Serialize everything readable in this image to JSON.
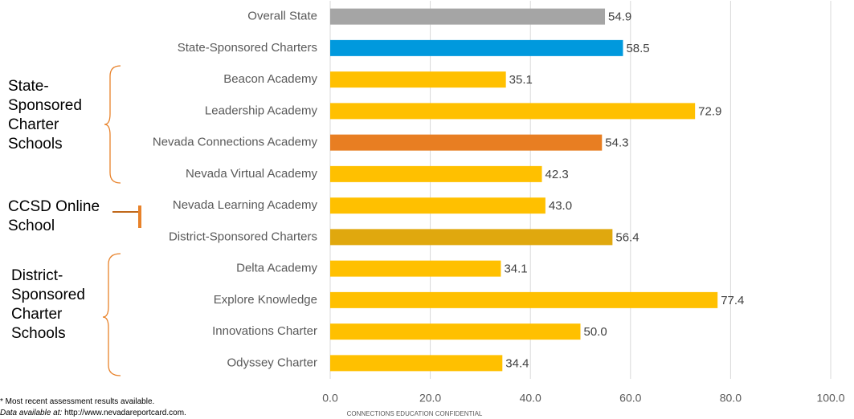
{
  "chart_data": {
    "type": "bar",
    "orientation": "horizontal",
    "categories": [
      "Overall State",
      "State-Sponsored Charters",
      "Beacon Academy",
      "Leadership Academy",
      "Nevada Connections Academy",
      "Nevada Virtual Academy",
      "Nevada Learning Academy",
      "District-Sponsored Charters",
      "Delta Academy",
      "Explore Knowledge",
      "Innovations Charter",
      "Odyssey Charter"
    ],
    "values": [
      54.9,
      58.5,
      35.1,
      72.9,
      54.3,
      42.3,
      43.0,
      56.4,
      34.1,
      77.4,
      50.0,
      34.4
    ],
    "value_labels": [
      "54.9",
      "58.5",
      "35.1",
      "72.9",
      "54.3",
      "42.3",
      "43.0",
      "56.4",
      "34.1",
      "77.4",
      "50.0",
      "34.4"
    ],
    "colors": [
      "#a5a5a5",
      "#0099dd",
      "#ffc000",
      "#ffc000",
      "#e87e22",
      "#ffc000",
      "#ffc000",
      "#e0a80e",
      "#ffc000",
      "#ffc000",
      "#ffc000",
      "#ffc000"
    ],
    "xlim": [
      0,
      100
    ],
    "xticks": [
      {
        "value": 0,
        "label": "0.0"
      },
      {
        "value": 20,
        "label": "20.0"
      },
      {
        "value": 40,
        "label": "40.0"
      },
      {
        "value": 60,
        "label": "60.0"
      },
      {
        "value": 80,
        "label": "80.0"
      },
      {
        "value": 100,
        "label": "100.0"
      }
    ],
    "grid": true,
    "annotations": [
      "State-Sponsored Charter Schools",
      "CCSD Online School",
      "District-Sponsored Charter Schools"
    ],
    "footnote": "* Most recent assessment results available.",
    "source_label": "Data available at:",
    "source_url": "http://www.nevadareportcard.com.",
    "confidential": "CONNECTIONS EDUCATION CONFIDENTIAL"
  }
}
